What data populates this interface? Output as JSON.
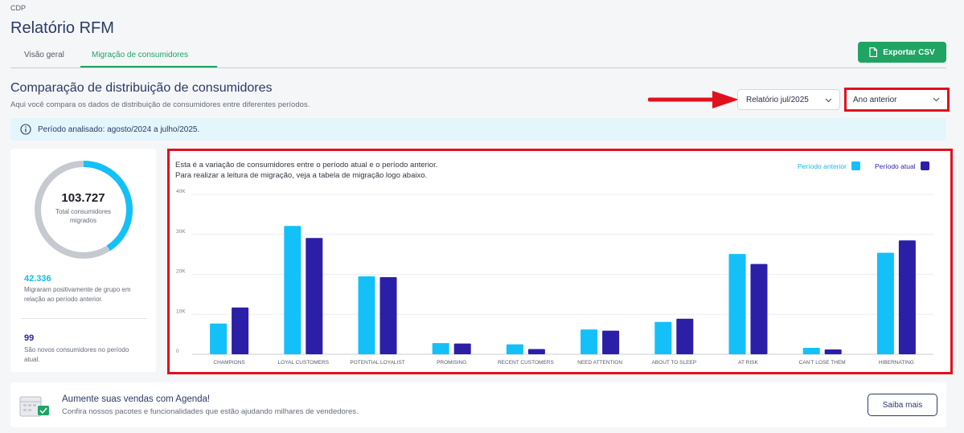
{
  "breadcrumb": "CDP",
  "page_title": "Relatório RFM",
  "tabs": [
    {
      "label": "Visão geral",
      "active": false
    },
    {
      "label": "Migração de consumidores",
      "active": true
    }
  ],
  "export_button": {
    "label": "Exportar CSV",
    "icon": "file-icon"
  },
  "section": {
    "title": "Comparação de distribuição de consumidores",
    "subtitle": "Aqui você compara os dados de distribuição de consumidores entre diferentes períodos."
  },
  "filters": {
    "report_select": "Relatório jul/2025",
    "compare_select": "Ano anterior"
  },
  "period_banner": "Período analisado: agosto/2024 a julho/2025.",
  "summary": {
    "total": "103.727",
    "total_label": "Total consumidores migrados",
    "positive_count": "42.336",
    "positive_desc": "Migraram positivamente de grupo em relação ao período anterior.",
    "new_count": "99",
    "new_desc": "São novos consumidores no período atual."
  },
  "chart_intro": {
    "line1": "Esta é a variação de consumidores entre o período atual e o período anterior.",
    "line2": "Para realizar a leitura de migração, veja a tabela de migração logo abaixo."
  },
  "colors": {
    "previous": "#14c0f8",
    "current": "#2b1fa8",
    "accent_green": "#1fa463",
    "highlight_red": "#e1101f"
  },
  "chart_data": {
    "type": "bar",
    "categories": [
      "CHAMPIONS",
      "LOYAL CUSTOMERS",
      "POTENTIAL LOYALIST",
      "PROMISING",
      "RECENT CUSTOMERS",
      "NEED ATTENTION",
      "ABOUT TO SLEEP",
      "AT RISK",
      "CAN'T LOSE THEM",
      "HIBERNATING"
    ],
    "series": [
      {
        "name": "Período anterior",
        "values": [
          7700,
          32100,
          19500,
          2800,
          2500,
          6200,
          8100,
          25100,
          1600,
          25400
        ]
      },
      {
        "name": "Período atual",
        "values": [
          11700,
          29100,
          19300,
          2700,
          1300,
          5900,
          8900,
          22600,
          1200,
          28500
        ]
      }
    ],
    "y_ticks": [
      "0",
      "10K",
      "20K",
      "30K",
      "40K"
    ],
    "ylim": [
      0,
      40000
    ],
    "grid": true,
    "legend_position": "top-right"
  },
  "promo": {
    "title": "Aumente suas vendas com Agenda!",
    "subtitle": "Confira nossos pacotes e funcionalidades que estão ajudando milhares de vendedores.",
    "button": "Saiba mais"
  }
}
